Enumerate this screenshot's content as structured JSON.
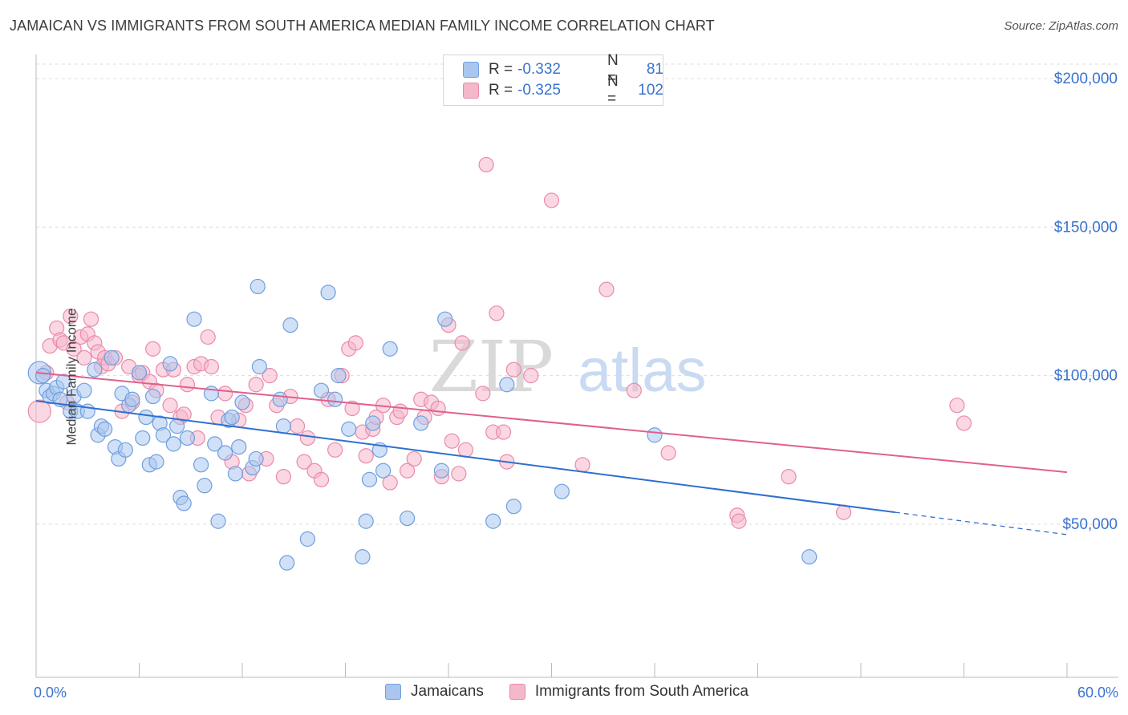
{
  "header": {
    "title": "JAMAICAN VS IMMIGRANTS FROM SOUTH AMERICA MEDIAN FAMILY INCOME CORRELATION CHART",
    "source": "Source: ZipAtlas.com"
  },
  "legend": {
    "rows": [
      {
        "r_label": "R =",
        "r_value": "-0.332",
        "n_label": "N =",
        "n_value": "81"
      },
      {
        "r_label": "R =",
        "r_value": "-0.325",
        "n_label": "N =",
        "n_value": "102"
      }
    ]
  },
  "watermark": {
    "zip": "ZIP",
    "atlas": "atlas"
  },
  "colors": {
    "blue_fill": "#a9c6ef",
    "blue_stroke": "#6f9fdf",
    "blue_line": "#2f6fd1",
    "pink_fill": "#f5b7ca",
    "pink_stroke": "#e98aa9",
    "pink_line": "#e0608e",
    "axis_text": "#3a73d0",
    "grid": "#dcdcdc"
  },
  "chart_data": {
    "type": "scatter",
    "title": "JAMAICAN VS IMMIGRANTS FROM SOUTH AMERICA MEDIAN FAMILY INCOME CORRELATION CHART",
    "xlabel": "",
    "ylabel": "Median Family Income",
    "xlim": [
      0,
      60
    ],
    "ylim": [
      0,
      210000
    ],
    "x_tick_labels": [
      "0.0%",
      "60.0%"
    ],
    "y_ticks": [
      50000,
      100000,
      150000,
      200000
    ],
    "y_tick_labels": [
      "$50,000",
      "$100,000",
      "$150,000",
      "$200,000"
    ],
    "grid": "horizontal dashed",
    "legend_position": "top-center",
    "series": [
      {
        "name": "Jamaicans",
        "color": "#a9c6ef",
        "trend": {
          "x": [
            0.0,
            50.0
          ],
          "y": [
            91500,
            54000
          ],
          "dashed_extension_to": [
            60.0,
            46500
          ]
        },
        "points": [
          [
            0.2,
            101000
          ],
          [
            0.4,
            100000
          ],
          [
            0.6,
            95000
          ],
          [
            0.8,
            93000
          ],
          [
            1.0,
            94000
          ],
          [
            1.2,
            96000
          ],
          [
            1.4,
            92000
          ],
          [
            1.6,
            98000
          ],
          [
            2.0,
            88000
          ],
          [
            2.2,
            93000
          ],
          [
            2.4,
            88000
          ],
          [
            2.8,
            95000
          ],
          [
            3.0,
            88000
          ],
          [
            3.4,
            102000
          ],
          [
            3.6,
            80000
          ],
          [
            3.8,
            83000
          ],
          [
            4.0,
            82000
          ],
          [
            4.4,
            106000
          ],
          [
            4.6,
            76000
          ],
          [
            4.8,
            72000
          ],
          [
            5.0,
            94000
          ],
          [
            5.2,
            75000
          ],
          [
            5.4,
            90000
          ],
          [
            5.6,
            92000
          ],
          [
            6.0,
            101000
          ],
          [
            6.2,
            79000
          ],
          [
            6.4,
            86000
          ],
          [
            6.6,
            70000
          ],
          [
            6.8,
            93000
          ],
          [
            7.0,
            71000
          ],
          [
            7.2,
            84000
          ],
          [
            7.4,
            80000
          ],
          [
            7.8,
            104000
          ],
          [
            8.0,
            77000
          ],
          [
            8.2,
            83000
          ],
          [
            8.4,
            59000
          ],
          [
            8.6,
            57000
          ],
          [
            8.8,
            79000
          ],
          [
            9.2,
            119000
          ],
          [
            9.6,
            70000
          ],
          [
            9.8,
            63000
          ],
          [
            10.2,
            94000
          ],
          [
            10.4,
            77000
          ],
          [
            10.6,
            51000
          ],
          [
            11.0,
            74000
          ],
          [
            11.2,
            85000
          ],
          [
            11.4,
            86000
          ],
          [
            11.6,
            67000
          ],
          [
            11.8,
            76000
          ],
          [
            12.0,
            91000
          ],
          [
            12.6,
            69000
          ],
          [
            12.8,
            72000
          ],
          [
            12.9,
            130000
          ],
          [
            13.0,
            103000
          ],
          [
            14.2,
            92000
          ],
          [
            14.4,
            83000
          ],
          [
            14.6,
            37000
          ],
          [
            14.8,
            117000
          ],
          [
            15.8,
            45000
          ],
          [
            16.6,
            95000
          ],
          [
            17.0,
            128000
          ],
          [
            17.6,
            100000
          ],
          [
            17.4,
            92000
          ],
          [
            18.2,
            82000
          ],
          [
            19.0,
            39000
          ],
          [
            19.4,
            65000
          ],
          [
            19.2,
            51000
          ],
          [
            19.6,
            84000
          ],
          [
            20.0,
            75000
          ],
          [
            20.2,
            68000
          ],
          [
            20.6,
            109000
          ],
          [
            21.6,
            52000
          ],
          [
            22.4,
            84000
          ],
          [
            23.6,
            68000
          ],
          [
            23.8,
            119000
          ],
          [
            26.6,
            51000
          ],
          [
            27.4,
            97000
          ],
          [
            27.8,
            56000
          ],
          [
            30.6,
            61000
          ],
          [
            36.0,
            80000
          ],
          [
            45.0,
            39000
          ]
        ]
      },
      {
        "name": "Immigrants from South America",
        "color": "#f5b7ca",
        "trend": {
          "x": [
            0.0,
            60.0
          ],
          "y": [
            101000,
            67500
          ]
        },
        "points": [
          [
            0.2,
            88000
          ],
          [
            0.6,
            101000
          ],
          [
            0.8,
            110000
          ],
          [
            1.2,
            116000
          ],
          [
            1.4,
            112000
          ],
          [
            1.6,
            111000
          ],
          [
            2.0,
            120000
          ],
          [
            2.2,
            109000
          ],
          [
            2.6,
            113000
          ],
          [
            2.8,
            106000
          ],
          [
            3.0,
            114000
          ],
          [
            3.4,
            111000
          ],
          [
            3.6,
            108000
          ],
          [
            3.8,
            103000
          ],
          [
            4.0,
            106000
          ],
          [
            4.2,
            104000
          ],
          [
            4.6,
            106000
          ],
          [
            5.0,
            88000
          ],
          [
            5.4,
            103000
          ],
          [
            5.6,
            91000
          ],
          [
            6.0,
            100000
          ],
          [
            6.2,
            101000
          ],
          [
            6.6,
            98000
          ],
          [
            6.8,
            109000
          ],
          [
            7.0,
            95000
          ],
          [
            7.4,
            102000
          ],
          [
            7.8,
            90000
          ],
          [
            8.0,
            102000
          ],
          [
            8.4,
            86000
          ],
          [
            8.6,
            87000
          ],
          [
            8.8,
            97000
          ],
          [
            9.2,
            103000
          ],
          [
            9.4,
            79000
          ],
          [
            9.6,
            104000
          ],
          [
            10.0,
            113000
          ],
          [
            10.2,
            103000
          ],
          [
            10.6,
            86000
          ],
          [
            11.0,
            94000
          ],
          [
            11.4,
            71000
          ],
          [
            11.8,
            85000
          ],
          [
            12.2,
            90000
          ],
          [
            12.4,
            67000
          ],
          [
            12.8,
            97000
          ],
          [
            13.4,
            72000
          ],
          [
            13.6,
            100000
          ],
          [
            14.0,
            90000
          ],
          [
            14.4,
            66000
          ],
          [
            14.8,
            93000
          ],
          [
            15.2,
            83000
          ],
          [
            15.6,
            71000
          ],
          [
            15.8,
            79000
          ],
          [
            16.2,
            68000
          ],
          [
            16.6,
            65000
          ],
          [
            17.0,
            92000
          ],
          [
            17.4,
            75000
          ],
          [
            17.8,
            100000
          ],
          [
            18.2,
            109000
          ],
          [
            18.4,
            89000
          ],
          [
            18.6,
            111000
          ],
          [
            19.0,
            81000
          ],
          [
            19.2,
            73000
          ],
          [
            19.6,
            82000
          ],
          [
            19.8,
            86000
          ],
          [
            20.2,
            90000
          ],
          [
            20.6,
            64000
          ],
          [
            21.0,
            86000
          ],
          [
            21.2,
            88000
          ],
          [
            21.6,
            68000
          ],
          [
            22.0,
            72000
          ],
          [
            22.4,
            92000
          ],
          [
            22.6,
            86000
          ],
          [
            23.0,
            91000
          ],
          [
            23.4,
            89000
          ],
          [
            23.6,
            66000
          ],
          [
            24.0,
            117000
          ],
          [
            24.2,
            78000
          ],
          [
            24.6,
            67000
          ],
          [
            24.8,
            111000
          ],
          [
            25.0,
            75000
          ],
          [
            26.0,
            94000
          ],
          [
            26.2,
            171000
          ],
          [
            26.6,
            81000
          ],
          [
            26.8,
            121000
          ],
          [
            27.2,
            81000
          ],
          [
            27.4,
            71000
          ],
          [
            27.8,
            102000
          ],
          [
            28.8,
            100000
          ],
          [
            30.0,
            159000
          ],
          [
            31.8,
            70000
          ],
          [
            33.2,
            129000
          ],
          [
            34.8,
            95000
          ],
          [
            36.8,
            74000
          ],
          [
            40.8,
            53000
          ],
          [
            40.9,
            51000
          ],
          [
            43.8,
            66000
          ],
          [
            47.0,
            54000
          ],
          [
            53.6,
            90000
          ],
          [
            54.0,
            84000
          ],
          [
            1.8,
            91000
          ],
          [
            3.2,
            119000
          ]
        ]
      }
    ]
  },
  "axes": {
    "y_title": "Median Family Income",
    "x_min_label": "0.0%",
    "x_max_label": "60.0%",
    "y_labels": [
      "$200,000",
      "$150,000",
      "$100,000",
      "$50,000"
    ]
  },
  "bottom_legend": {
    "items": [
      {
        "label": "Jamaicans"
      },
      {
        "label": "Immigrants from South America"
      }
    ]
  }
}
